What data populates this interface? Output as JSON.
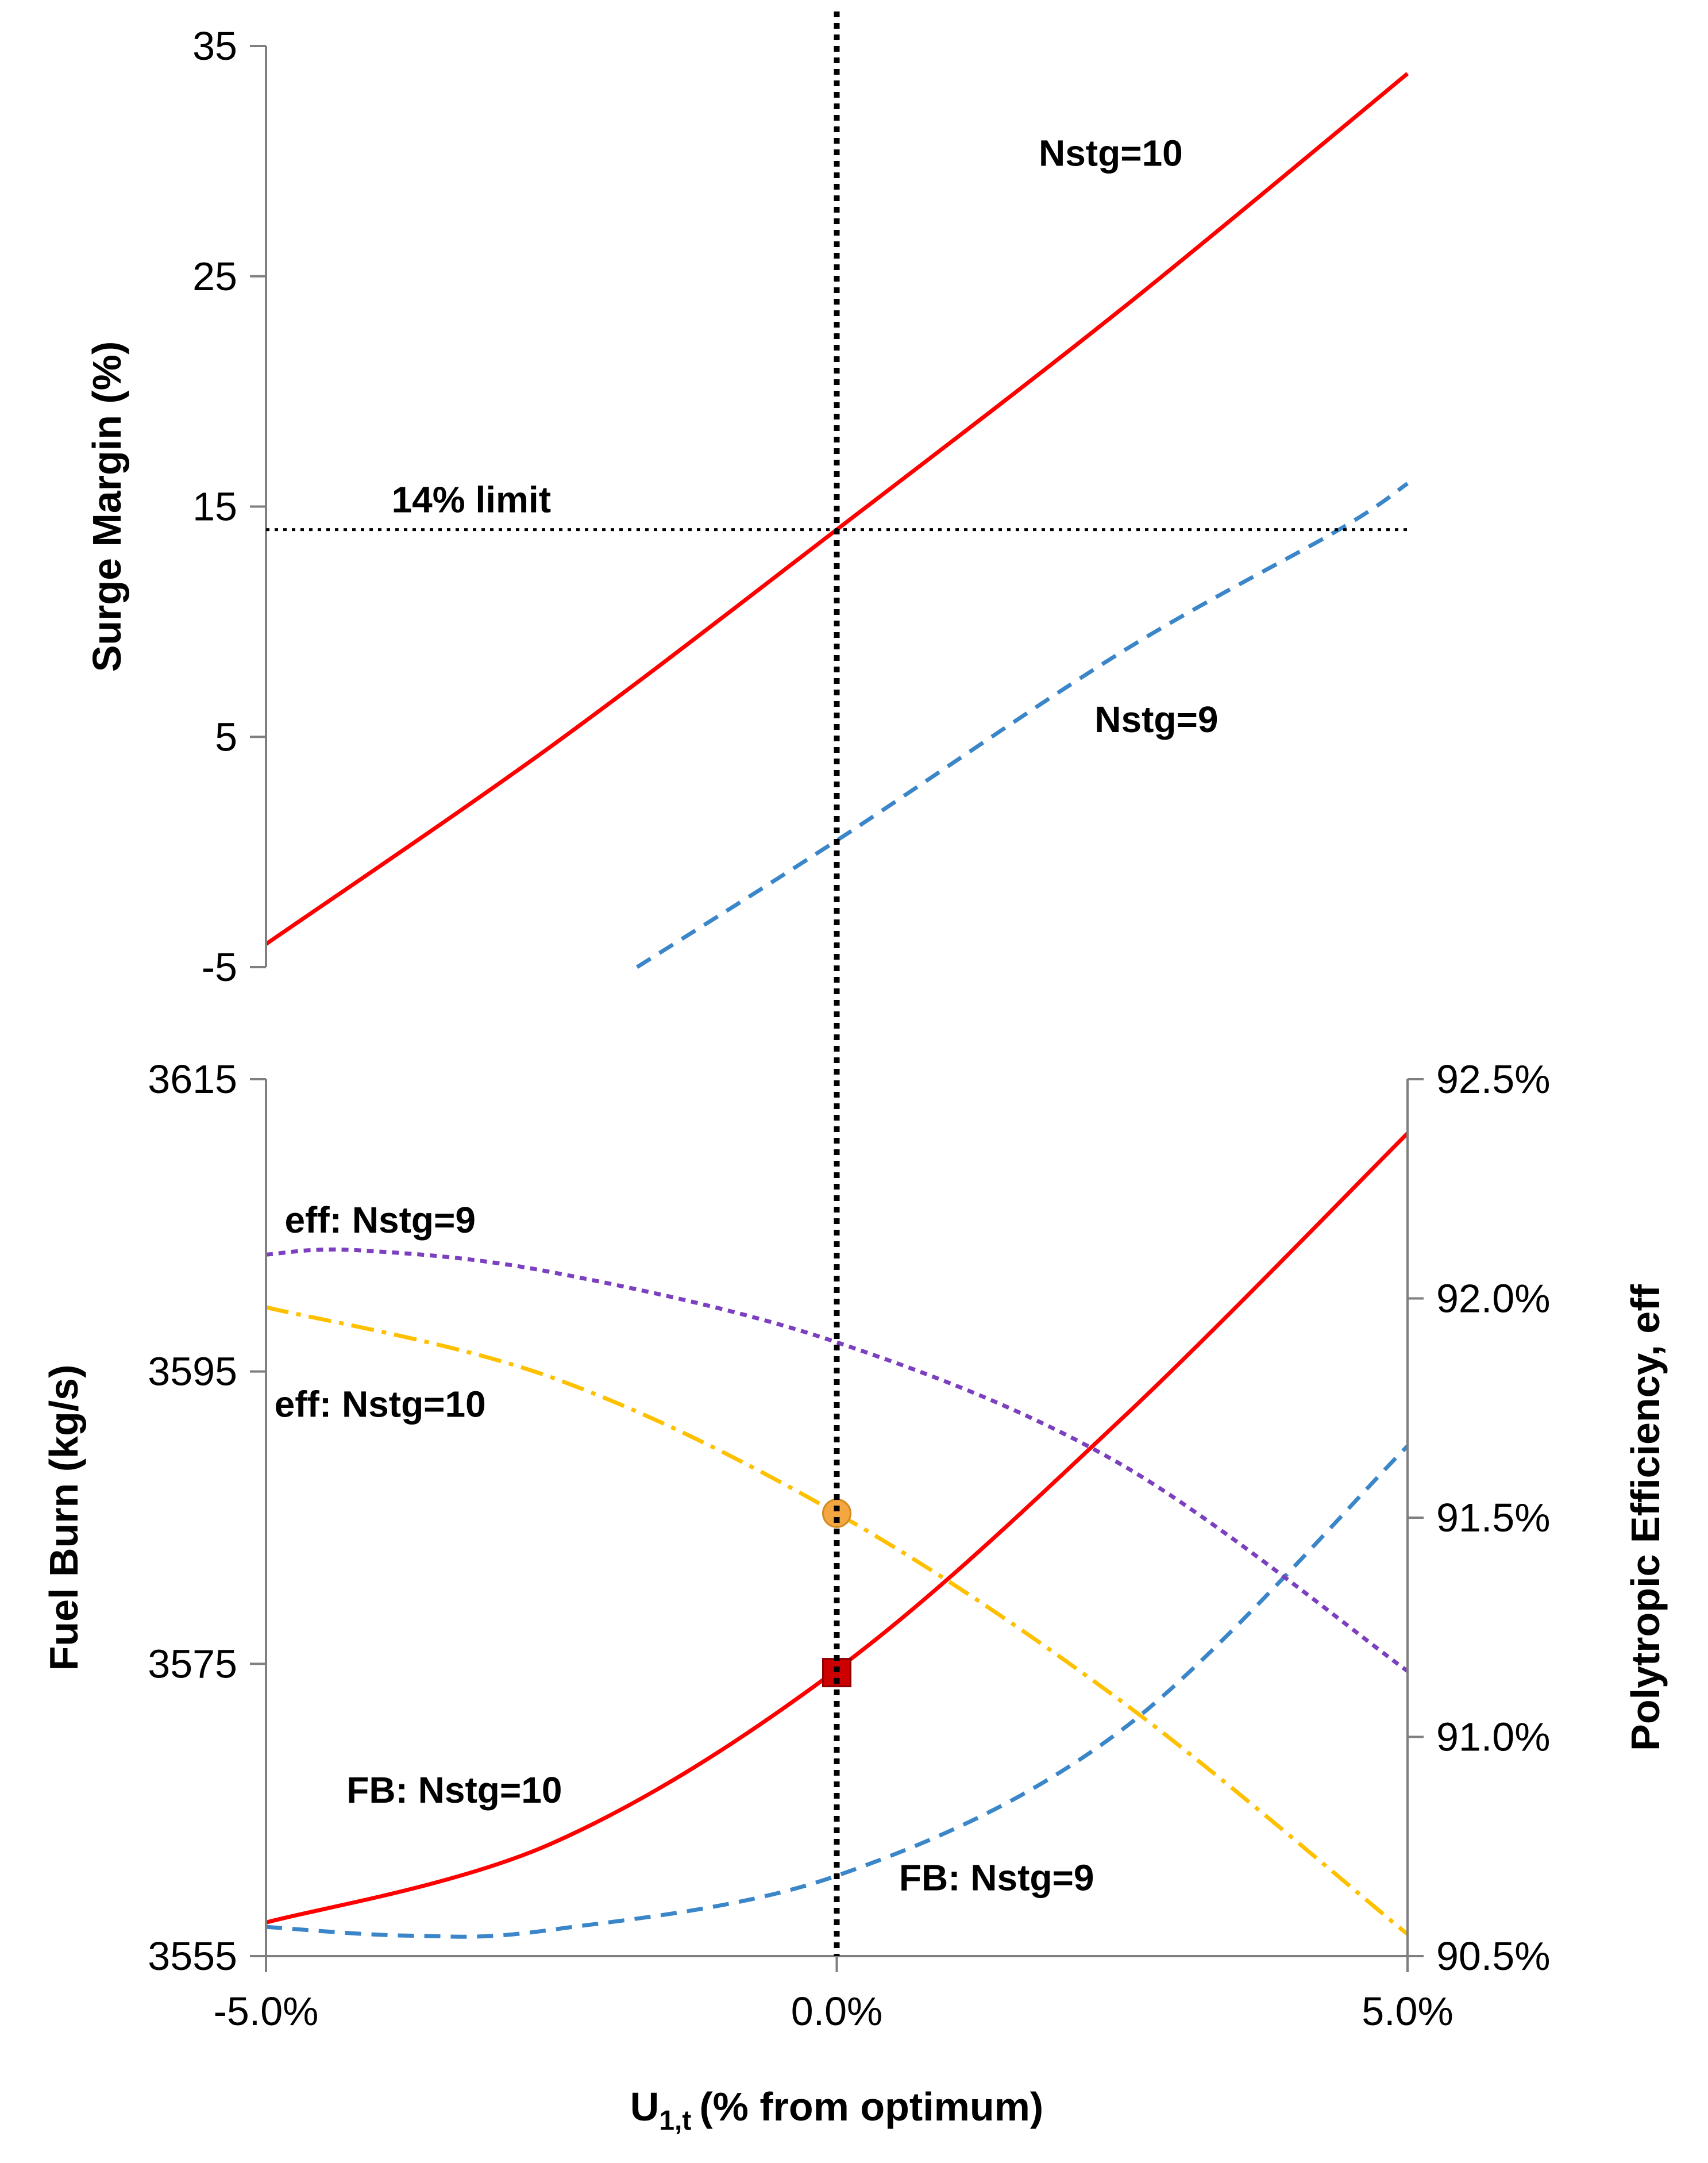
{
  "chart_data": [
    {
      "type": "line",
      "panel": "top",
      "ylabel": "Surge Margin (%)",
      "ylim": [
        -5,
        35
      ],
      "yticks": [
        35,
        25,
        15,
        5,
        -5
      ],
      "ytick_labels": [
        "35",
        "25",
        "15",
        "5",
        "-5"
      ],
      "xlim": [
        -5.0,
        5.0
      ],
      "limit_line": {
        "value": 14,
        "label": "14% limit"
      },
      "series": [
        {
          "name": "Nstg=10",
          "color": "#ff0000",
          "dash": "solid",
          "x": [
            -5,
            -2.5,
            0,
            2.5,
            5
          ],
          "y": [
            -4,
            4.6,
            14,
            23.6,
            33.8
          ]
        },
        {
          "name": "Nstg=9",
          "color": "#3a86c8",
          "dash": "dashed",
          "x": [
            -1.75,
            0,
            2.5,
            4.4,
            5
          ],
          "y": [
            -5,
            0.5,
            8.7,
            14,
            16
          ]
        }
      ],
      "annotations": [
        {
          "text": "Nstg=10",
          "x": 2.4,
          "y": 29.8
        },
        {
          "text": "Nstg=9",
          "x": 2.8,
          "y": 5.2
        }
      ]
    },
    {
      "type": "line",
      "panel": "bottom",
      "xlabel_main": "U",
      "xlabel_sub": "1,t",
      "xlabel_rest": "(% from optimum)",
      "xlim": [
        -5.0,
        5.0
      ],
      "xticks": [
        -5.0,
        0.0,
        5.0
      ],
      "xtick_labels": [
        "-5.0%",
        "0.0%",
        "5.0%"
      ],
      "ylabel_left": "Fuel Burn (kg/s)",
      "ylim_left": [
        3555,
        3615
      ],
      "yticks_left": [
        3615,
        3595,
        3575,
        3555
      ],
      "ytick_labels_left": [
        "3615",
        "3595",
        "3575",
        "3555"
      ],
      "ylabel_right": "Polytropic Efficiency, eff",
      "ylim_right": [
        90.5,
        92.5
      ],
      "yticks_right": [
        92.5,
        92.0,
        91.5,
        91.0,
        90.5
      ],
      "ytick_labels_right": [
        "92.5%",
        "92.0%",
        "91.5%",
        "91.0%",
        "90.5%"
      ],
      "series": [
        {
          "name": "FB: Nstg=10",
          "axis": "left",
          "color": "#ff0000",
          "dash": "solid",
          "x": [
            -5,
            -2.5,
            0,
            2.5,
            5
          ],
          "y": [
            3557.3,
            3562.7,
            3574.6,
            3591.8,
            3611.3
          ]
        },
        {
          "name": "FB: Nstg=9",
          "axis": "left",
          "color": "#3a86c8",
          "dash": "dashed",
          "x": [
            -5,
            -3.75,
            -2.5,
            0,
            2.5,
            5
          ],
          "y": [
            3557.0,
            3556.4,
            3556.8,
            3560.5,
            3570.5,
            3589.9
          ]
        },
        {
          "name": "eff: Nstg=9",
          "axis": "right",
          "color": "#7b3fbf",
          "dash": "dotted",
          "x": [
            -5,
            -4.2,
            -2.5,
            0,
            2.5,
            5
          ],
          "y": [
            92.1,
            92.11,
            92.06,
            91.9,
            91.62,
            91.15
          ]
        },
        {
          "name": "eff: Nstg=10",
          "axis": "right",
          "color": "#ffc000",
          "dash": "dashdot",
          "x": [
            -5,
            -2.5,
            0,
            2.5,
            5
          ],
          "y": [
            91.98,
            91.82,
            91.51,
            91.08,
            90.55
          ]
        }
      ],
      "markers": [
        {
          "shape": "square",
          "axis": "left",
          "color": "#cc0000",
          "x": 0,
          "y": 3574.4
        },
        {
          "shape": "circle",
          "axis": "right",
          "color": "#f4a640",
          "x": 0,
          "y": 91.51
        }
      ],
      "annotations": [
        {
          "text": "eff: Nstg=9",
          "x": -4.0,
          "y_right": 92.15
        },
        {
          "text": "eff: Nstg=10",
          "x": -4.0,
          "y_right": 91.73
        },
        {
          "text": "FB: Nstg=10",
          "x": -3.35,
          "y_right": 90.85
        },
        {
          "text": "FB: Nstg=9",
          "x": 1.4,
          "y_right": 90.65
        }
      ]
    }
  ]
}
